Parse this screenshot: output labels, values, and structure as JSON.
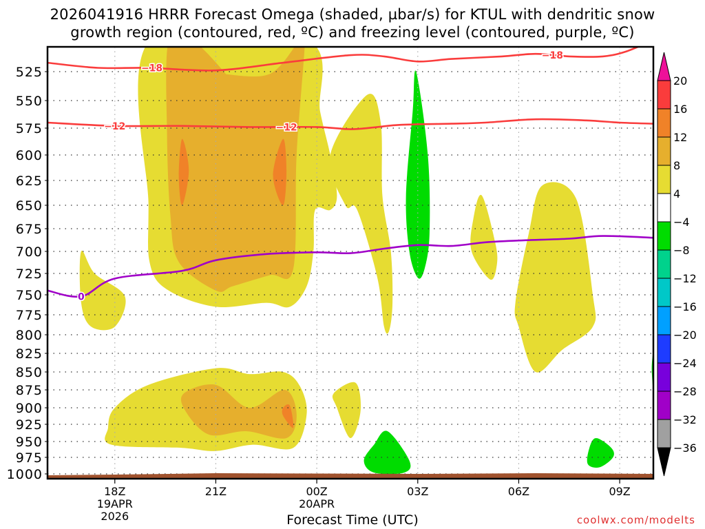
{
  "title": "2026041916 HRRR Forecast Omega (shaded, µbar/s) for KTUL with dendritic snow\ngrowth region (contoured, red, ºC) and freezing level (contoured, purple, ºC)",
  "credit": "coolwx.com/modelts",
  "chart_data": {
    "type": "heatmap",
    "title": "2026041916 HRRR Forecast Omega (shaded, µbar/s) for KTUL with dendritic snow growth region (contoured, red, ºC) and freezing level (contoured, purple, ºC)",
    "xlabel": "Forecast Time (UTC)",
    "ylabel": "",
    "x_range_hours_after_init": [
      0,
      18
    ],
    "x_ticks": [
      {
        "hour": 2,
        "label": [
          "18Z",
          "19APR",
          "2026"
        ]
      },
      {
        "hour": 5,
        "label": [
          "21Z"
        ]
      },
      {
        "hour": 8,
        "label": [
          "00Z",
          "20APR"
        ]
      },
      {
        "hour": 11,
        "label": [
          "03Z"
        ]
      },
      {
        "hour": 14,
        "label": [
          "06Z"
        ]
      },
      {
        "hour": 17,
        "label": [
          "09Z"
        ]
      }
    ],
    "y_range_hpa": [
      500,
      1005
    ],
    "y_ticks": [
      525,
      550,
      575,
      600,
      625,
      650,
      675,
      700,
      725,
      750,
      775,
      800,
      825,
      850,
      875,
      900,
      925,
      950,
      975,
      1000
    ],
    "grid": true,
    "colorbar": {
      "levels": [
        20,
        16,
        12,
        8,
        4,
        -4,
        -8,
        -12,
        -16,
        -20,
        -24,
        -28,
        -32,
        -36
      ],
      "colors": [
        "#ee1199",
        "#fa3c3c",
        "#f08228",
        "#e6af2d",
        "#e6dc32",
        "#ffffff",
        "#00dc00",
        "#00d28c",
        "#00c8c8",
        "#00a0ff",
        "#1e3cff",
        "#7800dc",
        "#a000c8",
        "#a0a0a0",
        "#000000"
      ],
      "extend": "both"
    },
    "shaded_regions": [
      {
        "name": "omega-4-8-main",
        "range": [
          4,
          8
        ],
        "pts": [
          [
            3.05,
            500
          ],
          [
            7.7,
            500
          ],
          [
            8.1,
            560
          ],
          [
            8.4,
            600
          ],
          [
            8.6,
            640
          ],
          [
            8.4,
            655
          ],
          [
            7.95,
            655
          ],
          [
            7.9,
            700
          ],
          [
            7.7,
            740
          ],
          [
            7.2,
            765
          ],
          [
            6.5,
            760
          ],
          [
            5.0,
            765
          ],
          [
            3.6,
            745
          ],
          [
            3.05,
            715
          ],
          [
            3.0,
            650
          ]
        ]
      },
      {
        "name": "omega-4-8-tail",
        "range": [
          4,
          8
        ],
        "pts": [
          [
            8.4,
            600
          ],
          [
            9.5,
            545
          ],
          [
            9.9,
            570
          ],
          [
            9.95,
            640
          ],
          [
            10.2,
            700
          ],
          [
            10.25,
            760
          ],
          [
            10.15,
            795
          ],
          [
            10.0,
            790
          ],
          [
            9.8,
            730
          ],
          [
            9.2,
            655
          ],
          [
            8.85,
            650
          ]
        ]
      },
      {
        "name": "omega-8-12-main",
        "range": [
          8,
          12
        ],
        "pts": [
          [
            3.6,
            500
          ],
          [
            4.3,
            500
          ],
          [
            5.3,
            527
          ],
          [
            5.2,
            527
          ],
          [
            6.6,
            527
          ],
          [
            7.5,
            500
          ],
          [
            7.65,
            500
          ],
          [
            7.4,
            600
          ],
          [
            7.3,
            720
          ],
          [
            6.6,
            727
          ],
          [
            5.5,
            740
          ],
          [
            5.0,
            745
          ],
          [
            3.9,
            712
          ],
          [
            3.65,
            660
          ],
          [
            3.55,
            580
          ]
        ]
      },
      {
        "name": "omega-12-16-a",
        "range": [
          12,
          16
        ],
        "pts": [
          [
            4.0,
            585
          ],
          [
            4.2,
            615
          ],
          [
            4.0,
            650
          ],
          [
            3.9,
            620
          ]
        ]
      },
      {
        "name": "omega-12-16-b",
        "range": [
          12,
          16
        ],
        "pts": [
          [
            7.0,
            585
          ],
          [
            7.1,
            615
          ],
          [
            7.0,
            650
          ],
          [
            6.7,
            620
          ]
        ]
      },
      {
        "name": "omega-4-8-left",
        "range": [
          4,
          8
        ],
        "pts": [
          [
            1.0,
            700
          ],
          [
            1.4,
            725
          ],
          [
            2.3,
            752
          ],
          [
            2.0,
            790
          ],
          [
            1.3,
            790
          ],
          [
            1.0,
            760
          ]
        ]
      },
      {
        "name": "omega-4-8-low",
        "range": [
          4,
          8
        ],
        "pts": [
          [
            1.8,
            930
          ],
          [
            2.0,
            900
          ],
          [
            3.0,
            868
          ],
          [
            5.0,
            845
          ],
          [
            6.0,
            853
          ],
          [
            7.0,
            850
          ],
          [
            7.5,
            870
          ],
          [
            7.7,
            910
          ],
          [
            7.3,
            960
          ],
          [
            6.1,
            955
          ],
          [
            5.0,
            965
          ],
          [
            4.0,
            960
          ],
          [
            1.9,
            955
          ]
        ]
      },
      {
        "name": "omega-8-12-low",
        "range": [
          8,
          12
        ],
        "pts": [
          [
            4.05,
            880
          ],
          [
            5.0,
            868
          ],
          [
            6.0,
            900
          ],
          [
            7.05,
            875
          ],
          [
            7.4,
            910
          ],
          [
            7.1,
            945
          ],
          [
            5.9,
            935
          ],
          [
            4.8,
            940
          ],
          [
            4.1,
            905
          ]
        ]
      },
      {
        "name": "omega-12-16-low",
        "range": [
          12,
          16
        ],
        "pts": [
          [
            7.0,
            900
          ],
          [
            7.2,
            897
          ],
          [
            7.3,
            930
          ],
          [
            7.0,
            912
          ]
        ]
      },
      {
        "name": "omega-4-8-small",
        "range": [
          4,
          8
        ],
        "pts": [
          [
            8.5,
            880
          ],
          [
            9.15,
            865
          ],
          [
            9.3,
            905
          ],
          [
            9.0,
            945
          ],
          [
            8.6,
            900
          ]
        ]
      },
      {
        "name": "omega-4-8-05z",
        "range": [
          4,
          8
        ],
        "pts": [
          [
            12.9,
            640
          ],
          [
            13.3,
            690
          ],
          [
            13.35,
            715
          ],
          [
            13.15,
            732
          ],
          [
            12.6,
            700
          ],
          [
            12.65,
            665
          ]
        ]
      },
      {
        "name": "omega-4-8-07z",
        "range": [
          4,
          8
        ],
        "pts": [
          [
            14.7,
            630
          ],
          [
            15.7,
            643
          ],
          [
            16.2,
            750
          ],
          [
            16.2,
            790
          ],
          [
            15.3,
            820
          ],
          [
            14.5,
            850
          ],
          [
            14.0,
            790
          ],
          [
            13.9,
            760
          ],
          [
            14.3,
            680
          ]
        ]
      },
      {
        "name": "omega-neg4-neg8-03z",
        "range": [
          -8,
          -4
        ],
        "pts": [
          [
            10.95,
            525
          ],
          [
            11.3,
            600
          ],
          [
            11.35,
            680
          ],
          [
            11.2,
            720
          ],
          [
            11.0,
            730
          ],
          [
            10.75,
            700
          ],
          [
            10.65,
            640
          ],
          [
            10.85,
            560
          ]
        ]
      },
      {
        "name": "omega-neg4-neg8-low",
        "range": [
          -8,
          -4
        ],
        "pts": [
          [
            10.1,
            935
          ],
          [
            10.75,
            980
          ],
          [
            10.6,
            998
          ],
          [
            9.7,
            998
          ],
          [
            9.4,
            980
          ],
          [
            9.7,
            955
          ]
        ]
      },
      {
        "name": "omega-neg4-neg8-08z",
        "range": [
          -8,
          -4
        ],
        "pts": [
          [
            16.3,
            945
          ],
          [
            16.75,
            960
          ],
          [
            16.8,
            975
          ],
          [
            16.4,
            990
          ],
          [
            16.05,
            985
          ],
          [
            16.1,
            960
          ]
        ]
      },
      {
        "name": "omega-neg4-neg8-edge",
        "range": [
          -8,
          -4
        ],
        "pts": [
          [
            18.0,
            825
          ],
          [
            17.95,
            845
          ],
          [
            18.0,
            875
          ]
        ]
      }
    ],
    "contours": [
      {
        "name": "dendritic-minus-18",
        "value": -18,
        "color": "#fa3c3c",
        "label": "-18",
        "pts": [
          [
            0,
            518
          ],
          [
            1.5,
            522
          ],
          [
            3.0,
            522
          ],
          [
            5.0,
            524
          ],
          [
            7.0,
            518
          ],
          [
            9.0,
            512
          ],
          [
            10.0,
            513
          ],
          [
            11.0,
            517
          ],
          [
            12.0,
            515
          ],
          [
            13.5,
            513
          ],
          [
            14.5,
            511
          ],
          [
            15.5,
            513
          ],
          [
            16.5,
            513
          ],
          [
            17.2,
            509
          ],
          [
            18.0,
            500
          ]
        ]
      },
      {
        "name": "dendritic-minus-12",
        "value": -12,
        "color": "#fa3c3c",
        "label": "-12",
        "pts": [
          [
            0,
            570
          ],
          [
            2.0,
            573
          ],
          [
            4.0,
            573
          ],
          [
            6.0,
            574
          ],
          [
            8.0,
            574
          ],
          [
            9.0,
            576
          ],
          [
            9.8,
            574
          ],
          [
            10.5,
            572
          ],
          [
            12.0,
            571
          ],
          [
            13.0,
            570
          ],
          [
            14.5,
            567
          ],
          [
            16.0,
            568
          ],
          [
            17.0,
            570
          ],
          [
            18.0,
            571
          ]
        ]
      },
      {
        "name": "freezing-level-0",
        "value": 0,
        "color": "#a000c8",
        "label": "0",
        "pts": [
          [
            0,
            745
          ],
          [
            1.0,
            752
          ],
          [
            2.0,
            731
          ],
          [
            4.0,
            722
          ],
          [
            5.0,
            710
          ],
          [
            6.5,
            703
          ],
          [
            8.0,
            701
          ],
          [
            9.0,
            702
          ],
          [
            10.0,
            697
          ],
          [
            11.0,
            693
          ],
          [
            12.0,
            694
          ],
          [
            13.0,
            690
          ],
          [
            14.0,
            688
          ],
          [
            15.5,
            686
          ],
          [
            16.5,
            683
          ],
          [
            18.0,
            685
          ]
        ]
      }
    ],
    "terrain": {
      "color": "#a0522d",
      "surface_hpa": [
        [
          0,
          1002
        ],
        [
          2.0,
          1001
        ],
        [
          5.0,
          999
        ],
        [
          8.0,
          999.5
        ],
        [
          11.0,
          1000
        ],
        [
          14.5,
          999
        ],
        [
          18.0,
          1000
        ]
      ]
    }
  }
}
